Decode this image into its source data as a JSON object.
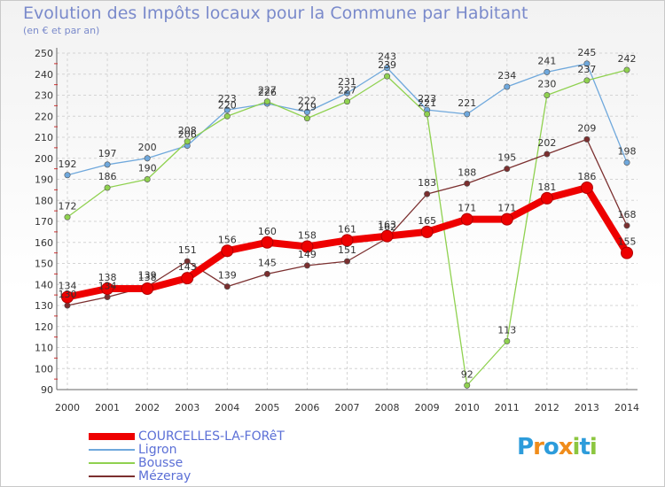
{
  "chart_data": {
    "type": "line",
    "title": "Evolution des Impôts locaux pour la Commune par Habitant",
    "subtitle": "(en € et par an)",
    "categories": [
      "2000",
      "2001",
      "2002",
      "2003",
      "2004",
      "2005",
      "2006",
      "2007",
      "2008",
      "2009",
      "2010",
      "2011",
      "2012",
      "2013",
      "2014"
    ],
    "ylim": [
      90,
      250
    ],
    "yticks": [
      90,
      100,
      110,
      120,
      130,
      140,
      150,
      160,
      170,
      180,
      190,
      200,
      210,
      220,
      230,
      240,
      250
    ],
    "grid": true,
    "legend_position": "bottom-left",
    "series": [
      {
        "name": "COURCELLES-LA-FORêT",
        "color": "#ee0000",
        "values": [
          134,
          138,
          138,
          143,
          156,
          160,
          158,
          161,
          163,
          165,
          171,
          171,
          181,
          186,
          155
        ],
        "labels": [
          "134",
          "138",
          "138",
          "143",
          "156",
          "160",
          "158",
          "161",
          "163",
          "165",
          "171",
          "171",
          "181",
          "186",
          "155"
        ]
      },
      {
        "name": "Ligron",
        "color": "#6fa8dc",
        "values": [
          192,
          197,
          200,
          206,
          223,
          226,
          222,
          231,
          243,
          223,
          221,
          234,
          241,
          245,
          198
        ],
        "labels": [
          "192",
          "197",
          "200",
          "206",
          "223",
          "226",
          "222",
          "231",
          "243",
          "223",
          "221",
          "234",
          "241",
          "245",
          "198"
        ]
      },
      {
        "name": "Bousse",
        "color": "#8fd14f",
        "values": [
          172,
          186,
          190,
          208,
          220,
          227,
          219,
          227,
          239,
          221,
          92,
          113,
          230,
          237,
          242
        ],
        "labels": [
          "172",
          "186",
          "190",
          "208",
          "220",
          "227",
          "219",
          "227",
          "239",
          "221",
          "92",
          "113",
          "230",
          "237",
          "242"
        ]
      },
      {
        "name": "Mézeray",
        "color": "#7b2f2f",
        "values": [
          130,
          134,
          139,
          151,
          139,
          145,
          149,
          151,
          162,
          183,
          188,
          195,
          202,
          209,
          168
        ],
        "labels": [
          "130",
          "134",
          "139",
          "151",
          "139",
          "145",
          "149",
          "151",
          "162",
          "183",
          "188",
          "195",
          "202",
          "209",
          "168"
        ]
      }
    ]
  },
  "logo": {
    "text": "Proxiti",
    "colors": [
      "#2d9cdb",
      "#f08c1a",
      "#2d9cdb",
      "#f08c1a",
      "#8cc63f",
      "#2d9cdb",
      "#8cc63f"
    ]
  }
}
